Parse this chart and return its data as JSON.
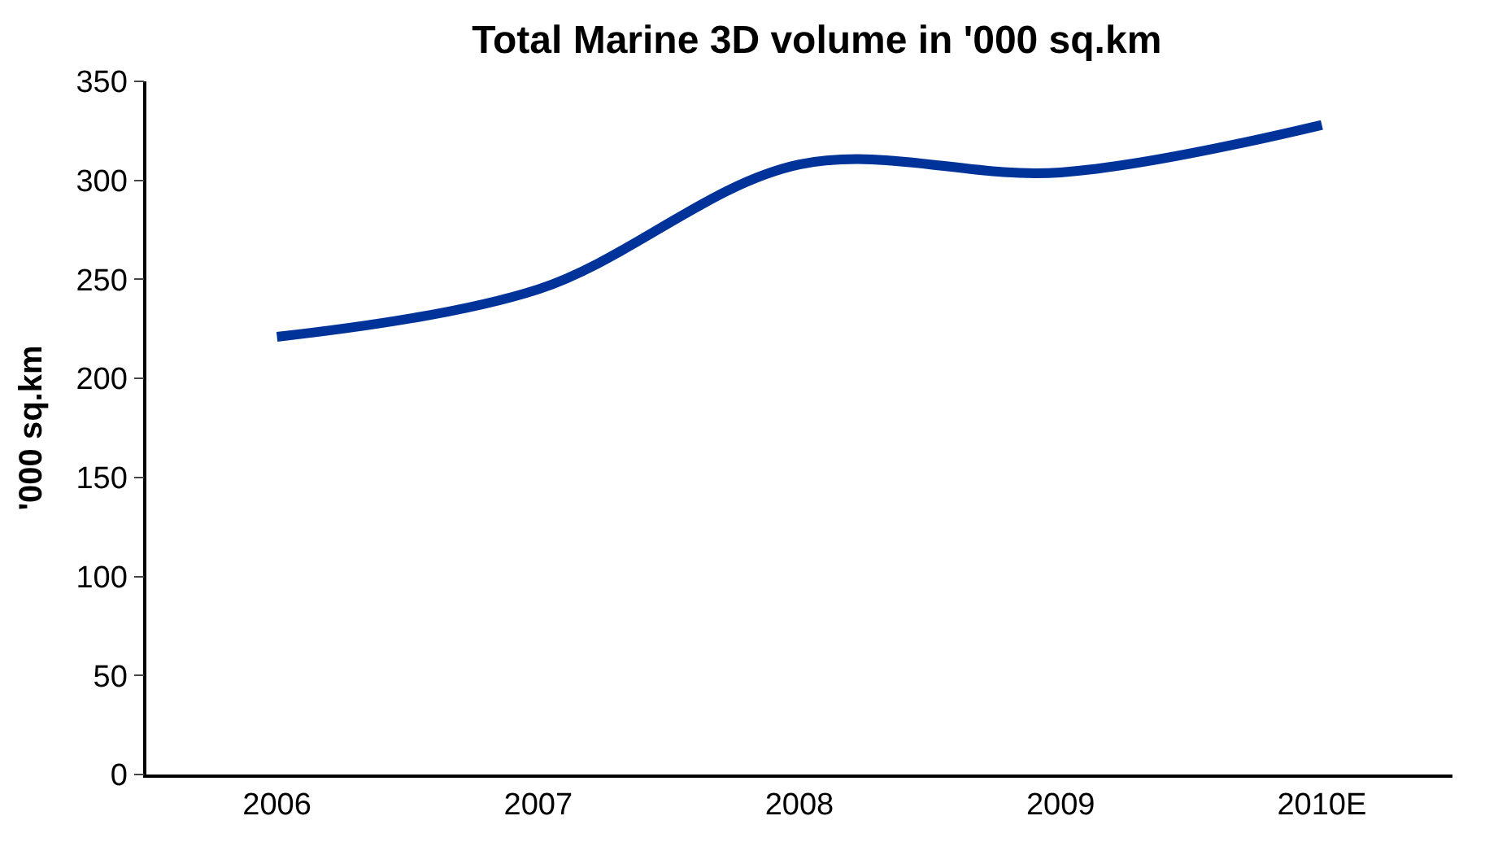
{
  "chart_data": {
    "type": "line",
    "title": "Total Marine 3D volume in '000 sq.km",
    "ylabel": "'000 sq.km",
    "categories": [
      "2006",
      "2007",
      "2008",
      "2009",
      "2010E"
    ],
    "series": [
      {
        "color": "#003399",
        "values": [
          221,
          245,
          308,
          304,
          328
        ]
      }
    ],
    "ylim": [
      0,
      350
    ],
    "yticks": [
      0,
      50,
      100,
      150,
      200,
      250,
      300,
      350
    ],
    "marker": "none",
    "line_style": "solid"
  }
}
